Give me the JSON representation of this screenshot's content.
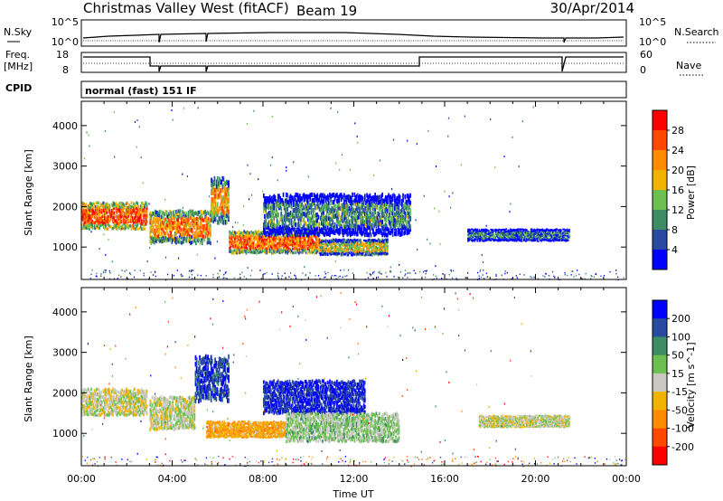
{
  "header": {
    "station": "Christmas Valley West (fitACF)",
    "beam": "Beam 19",
    "date": "30/Apr/2014"
  },
  "top_panels": {
    "nsky_label": "N.Sky",
    "nsearch_label": "N.Search",
    "nsky_ticks": [
      "10^5",
      "10^0"
    ],
    "nsearch_ticks": [
      "10^5",
      "10^0"
    ],
    "freq_label": "Freq.",
    "freq_unit": "[MHz]",
    "freq_ticks": [
      "18",
      "8"
    ],
    "nave_label": "Nave",
    "nave_ticks": [
      "60",
      "0"
    ],
    "cpid_label": "CPID",
    "cpid_text": "normal (fast) 151 IF"
  },
  "colors": {
    "power": [
      "#0000ff",
      "#2a4aa0",
      "#3c8c64",
      "#6cc050",
      "#f0b400",
      "#ff8c00",
      "#ff4800",
      "#ff0000"
    ],
    "velocity": [
      "#0000ff",
      "#2a4aa0",
      "#3c8c64",
      "#6cc050",
      "#c8c8c0",
      "#f0b400",
      "#ff8c00",
      "#ff4800",
      "#ff0000"
    ]
  },
  "chart_data": [
    {
      "type": "heatmap",
      "panel": "power",
      "ylabel": "Slant Range [km]",
      "xlabel": "",
      "xlim": [
        0,
        24
      ],
      "ylim": [
        200,
        4600
      ],
      "y_ticks": [
        "1000",
        "2000",
        "3000",
        "4000"
      ],
      "colorbar": {
        "label": "Power [dB]",
        "ticks": [
          "4",
          "8",
          "12",
          "16",
          "20",
          "24",
          "28"
        ],
        "range": [
          0,
          32
        ]
      },
      "echo_regions": [
        {
          "t0": 0.0,
          "t1": 2.9,
          "r_lo": 1450,
          "r_hi": 2100,
          "value": 26
        },
        {
          "t0": 3.0,
          "t1": 5.7,
          "r_lo": 1100,
          "r_hi": 1900,
          "value": 22
        },
        {
          "t0": 5.7,
          "t1": 6.5,
          "r_lo": 1600,
          "r_hi": 2700,
          "value": 20
        },
        {
          "t0": 6.5,
          "t1": 10.5,
          "r_lo": 850,
          "r_hi": 1400,
          "value": 24
        },
        {
          "t0": 10.5,
          "t1": 13.5,
          "r_lo": 800,
          "r_hi": 1200,
          "value": 16
        },
        {
          "t0": 8.0,
          "t1": 14.5,
          "r_lo": 1300,
          "r_hi": 2300,
          "value": 10
        },
        {
          "t0": 17.0,
          "t1": 21.5,
          "r_lo": 1150,
          "r_hi": 1450,
          "value": 8
        }
      ]
    },
    {
      "type": "heatmap",
      "panel": "velocity",
      "ylabel": "Slant Range [km]",
      "xlabel": "Time UT",
      "xlim": [
        0,
        24
      ],
      "ylim": [
        200,
        4600
      ],
      "x_ticks": [
        "00:00",
        "04:00",
        "08:00",
        "12:00",
        "16:00",
        "20:00",
        "00:00"
      ],
      "y_ticks": [
        "1000",
        "2000",
        "3000",
        "4000"
      ],
      "colorbar": {
        "label": "Velocity [m s^-1]",
        "ticks": [
          "200",
          "100",
          "50",
          "15",
          "-15",
          "-50",
          "-100",
          "-200"
        ],
        "range": [
          -250,
          250
        ]
      },
      "echo_regions": [
        {
          "t0": 0.0,
          "t1": 2.9,
          "r_lo": 1450,
          "r_hi": 2100,
          "value": 0
        },
        {
          "t0": 3.0,
          "t1": 5.0,
          "r_lo": 1100,
          "r_hi": 1900,
          "value": 0
        },
        {
          "t0": 5.0,
          "t1": 6.5,
          "r_lo": 1800,
          "r_hi": 2900,
          "value": 180
        },
        {
          "t0": 5.5,
          "t1": 9.0,
          "r_lo": 900,
          "r_hi": 1300,
          "value": -80
        },
        {
          "t0": 8.0,
          "t1": 12.5,
          "r_lo": 1500,
          "r_hi": 2300,
          "value": 200
        },
        {
          "t0": 9.0,
          "t1": 14.0,
          "r_lo": 800,
          "r_hi": 1500,
          "value": 40
        },
        {
          "t0": 17.5,
          "t1": 21.5,
          "r_lo": 1150,
          "r_hi": 1450,
          "value": 0
        }
      ]
    }
  ]
}
